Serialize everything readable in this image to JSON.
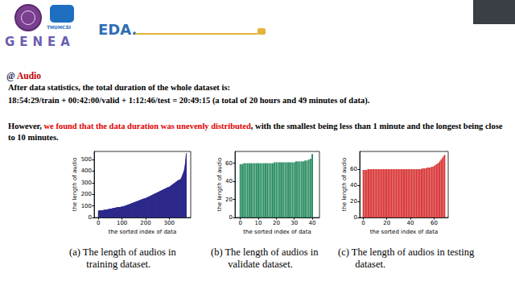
{
  "header": {
    "title": "EDA.",
    "logo_texts": [
      "THUHCSI",
      "GENEA"
    ]
  },
  "section": [
    {
      "text": "@ ",
      "color": "#1f2a55"
    },
    {
      "text": "Audio",
      "color": "#c00000"
    }
  ],
  "paragraphs": [
    [
      {
        "text": "After data statistics, the total duration of the whole dataset is:",
        "color": "#000000"
      }
    ],
    [
      {
        "text": "18:54:29/train + 00:42:00/valid + 1:12:46/test = 20:49:15  (a total of 20 hours and 49 minutes of data).",
        "color": "#000000"
      }
    ],
    [
      {
        "text": "However, ",
        "color": "#000000"
      },
      {
        "text": "we found that the data duration was unevenly distributed",
        "color": "#e00000"
      },
      {
        "text": ", with the smallest being less than 1 minute and the longest being close to 10 minutes.",
        "color": "#000000"
      }
    ]
  ],
  "chart_data": [
    {
      "type": "bar",
      "caption": "(a) The length of audios in training dataset.",
      "x_label": "the sorted index of data",
      "y_label": "the length of audio",
      "color": "#2e2a8c",
      "grid": false,
      "xlim": [
        -18,
        391
      ],
      "xticks": [
        0,
        100,
        200,
        300
      ],
      "ylim": [
        0,
        570
      ],
      "yticks": [
        0,
        100,
        200,
        300,
        400,
        500
      ],
      "values": [
        58,
        58,
        59,
        59,
        59,
        60,
        60,
        60,
        60,
        60,
        61,
        61,
        61,
        61,
        62,
        62,
        62,
        62,
        63,
        63,
        63,
        64,
        64,
        64,
        65,
        65,
        65,
        66,
        66,
        66,
        67,
        67,
        67,
        68,
        68,
        68,
        69,
        69,
        70,
        70,
        70,
        71,
        71,
        72,
        72,
        72,
        73,
        73,
        74,
        74,
        74,
        75,
        75,
        76,
        76,
        76,
        77,
        77,
        78,
        78,
        79,
        79,
        80,
        80,
        81,
        81,
        81,
        82,
        82,
        83,
        83,
        84,
        84,
        85,
        85,
        85,
        86,
        86,
        87,
        87,
        88,
        88,
        88,
        89,
        89,
        89,
        90,
        90,
        90,
        90,
        90,
        91,
        91,
        91,
        91,
        92,
        92,
        92,
        92,
        92,
        93,
        93,
        94,
        94,
        95,
        95,
        96,
        97,
        97,
        98,
        99,
        99,
        100,
        101,
        101,
        102,
        103,
        103,
        104,
        105,
        106,
        106,
        107,
        108,
        109,
        109,
        110,
        111,
        112,
        113,
        113,
        114,
        115,
        116,
        117,
        117,
        118,
        119,
        120,
        121,
        121,
        122,
        123,
        124,
        125,
        125,
        126,
        127,
        128,
        128,
        129,
        130,
        130,
        131,
        132,
        133,
        133,
        134,
        135,
        136,
        137,
        137,
        138,
        139,
        140,
        141,
        141,
        142,
        143,
        144,
        145,
        145,
        146,
        147,
        148,
        149,
        150,
        150,
        151,
        152,
        153,
        154,
        155,
        155,
        156,
        157,
        158,
        159,
        159,
        160,
        161,
        161,
        162,
        162,
        163,
        163,
        164,
        164,
        165,
        165,
        166,
        167,
        168,
        169,
        170,
        171,
        172,
        173,
        174,
        175,
        176,
        177,
        178,
        179,
        180,
        181,
        182,
        183,
        184,
        185,
        186,
        187,
        188,
        189,
        190,
        191,
        192,
        193,
        194,
        195,
        196,
        197,
        198,
        199,
        200,
        201,
        202,
        203,
        204,
        205,
        206,
        207,
        208,
        209,
        210,
        211,
        212,
        213,
        214,
        215,
        216,
        217,
        218,
        219,
        220,
        221,
        222,
        223,
        224,
        225,
        226,
        227,
        228,
        229,
        230,
        231,
        232,
        233,
        234,
        235,
        236,
        237,
        238,
        239,
        240,
        241,
        242,
        243,
        244,
        245,
        246,
        247,
        248,
        249,
        250,
        251,
        252,
        253,
        254,
        255,
        256,
        257,
        258,
        259,
        260,
        260,
        261,
        261,
        262,
        262,
        263,
        265,
        266,
        268,
        269,
        271,
        272,
        274,
        275,
        277,
        278,
        280,
        281,
        283,
        284,
        286,
        287,
        289,
        290,
        292,
        293,
        295,
        296,
        298,
        299,
        301,
        302,
        304,
        305,
        307,
        308,
        310,
        311,
        313,
        314,
        316,
        317,
        319,
        320,
        322,
        323,
        324,
        325,
        326,
        327,
        327,
        328,
        328,
        329,
        330,
        335,
        340,
        345,
        350,
        355,
        360,
        365,
        370,
        375,
        380,
        385,
        390,
        398,
        405,
        412,
        420,
        435,
        450,
        465,
        485,
        505,
        530,
        555
      ]
    },
    {
      "type": "bar",
      "caption": "(b) The length of audios in validate dataset.",
      "x_label": "the sorted index of data",
      "y_label": "the length of audio",
      "color": "#21895c",
      "grid": false,
      "xlim": [
        -3,
        44
      ],
      "xticks": [
        0,
        10,
        20,
        30,
        40
      ],
      "ylim": [
        0,
        73
      ],
      "yticks": [
        0,
        20,
        40,
        60
      ],
      "values": [
        59,
        59,
        60,
        60,
        60,
        60,
        60,
        60,
        60,
        60,
        60,
        60,
        60,
        60,
        60,
        60,
        60,
        60,
        60,
        61,
        61,
        61,
        61,
        61,
        61,
        61,
        61,
        61,
        61,
        61,
        61,
        62,
        62,
        62,
        62,
        62,
        63,
        63,
        64,
        65,
        70
      ]
    },
    {
      "type": "bar",
      "caption": "(c) The length of audios in testing dataset.",
      "x_label": "the sorted index of data",
      "y_label": "the length of audio",
      "color": "#d93b3b",
      "grid": false,
      "xlim": [
        -3,
        72
      ],
      "xticks": [
        0,
        20,
        40,
        60
      ],
      "ylim": [
        0,
        82
      ],
      "yticks": [
        0,
        20,
        40,
        60
      ],
      "values": [
        59,
        59,
        59,
        59,
        60,
        60,
        60,
        60,
        60,
        60,
        60,
        60,
        60,
        60,
        60,
        60,
        60,
        60,
        60,
        60,
        60,
        60,
        60,
        60,
        60,
        60,
        60,
        60,
        60,
        60,
        60,
        60,
        60,
        60,
        60,
        60,
        60,
        60,
        60,
        60,
        60,
        60,
        60,
        60,
        60,
        60,
        60,
        60,
        60,
        60,
        61,
        61,
        61,
        61,
        62,
        62,
        62,
        62,
        63,
        63,
        64,
        65,
        66,
        67,
        68,
        70,
        72,
        74,
        76,
        78
      ]
    }
  ]
}
